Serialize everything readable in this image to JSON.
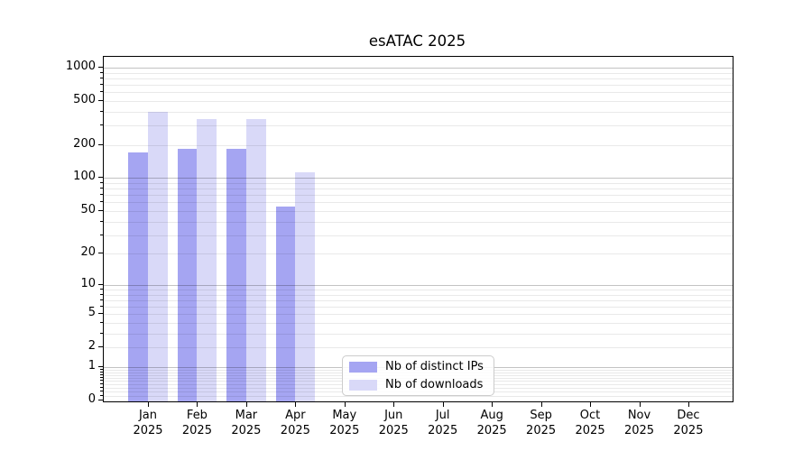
{
  "chart_data": {
    "type": "bar",
    "title": "esATAC 2025",
    "categories": [
      "Jan 2025",
      "Feb 2025",
      "Mar 2025",
      "Apr 2025",
      "May 2025",
      "Jun 2025",
      "Jul 2025",
      "Aug 2025",
      "Sep 2025",
      "Oct 2025",
      "Nov 2025",
      "Dec 2025"
    ],
    "series": [
      {
        "name": "Nb of distinct IPs",
        "color": "#a5a5f2",
        "values": [
          170,
          183,
          185,
          55,
          0,
          0,
          0,
          0,
          0,
          0,
          0,
          0
        ]
      },
      {
        "name": "Nb of downloads",
        "color": "#d9d9f8",
        "values": [
          400,
          345,
          345,
          114,
          0,
          0,
          0,
          0,
          0,
          0,
          0,
          0
        ]
      }
    ],
    "xlabel": "",
    "ylabel": "",
    "yscale": "log1p",
    "y_ticks": [
      1000,
      500,
      200,
      100,
      50,
      20,
      10,
      5,
      2,
      1,
      0
    ],
    "ylim": [
      0,
      1250
    ],
    "grid": "horizontal, major and minor",
    "legend_position": "inside lower-center"
  }
}
